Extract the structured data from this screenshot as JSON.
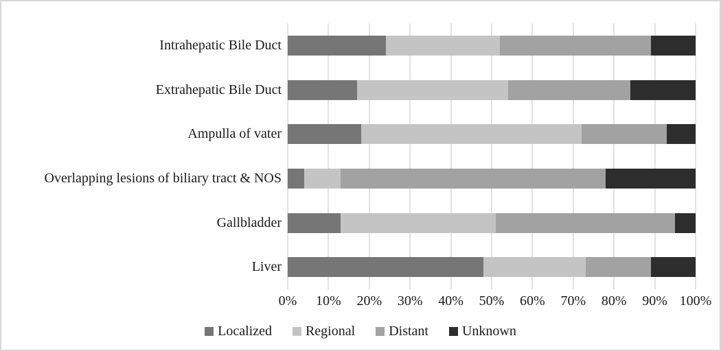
{
  "figure": {
    "background": "#ffffff",
    "border_color": "#d7d7d7",
    "text_color": "#1a1a1a"
  },
  "chart_data": {
    "type": "bar",
    "orientation": "horizontal",
    "stacked": true,
    "title": "",
    "xlabel": "",
    "ylabel": "",
    "categories": [
      "Intrahepatic Bile Duct",
      "Extrahepatic Bile Duct",
      "Ampulla of vater",
      "Overlapping lesions of biliary tract & NOS",
      "Gallbladder",
      "Liver"
    ],
    "series": [
      {
        "name": "Localized",
        "color": "#767676",
        "values": [
          24,
          17,
          18,
          4,
          13,
          48
        ]
      },
      {
        "name": "Regional",
        "color": "#c4c4c4",
        "values": [
          28,
          37,
          54,
          9,
          38,
          25
        ]
      },
      {
        "name": "Distant",
        "color": "#a2a2a2",
        "values": [
          37,
          30,
          21,
          65,
          44,
          16
        ]
      },
      {
        "name": "Unknown",
        "color": "#2d2d2d",
        "values": [
          11,
          16,
          7,
          22,
          5,
          11
        ]
      }
    ],
    "value_unit": "%",
    "x_axis": {
      "min": 0,
      "max": 100,
      "tick_step": 10,
      "ticks": [
        "0%",
        "10%",
        "20%",
        "30%",
        "40%",
        "50%",
        "60%",
        "70%",
        "80%",
        "90%",
        "100%"
      ]
    },
    "grid": {
      "vertical": true,
      "color": "#e2e2e2"
    },
    "legend": {
      "position": "bottom",
      "entries": [
        "Localized",
        "Regional",
        "Distant",
        "Unknown"
      ]
    }
  }
}
